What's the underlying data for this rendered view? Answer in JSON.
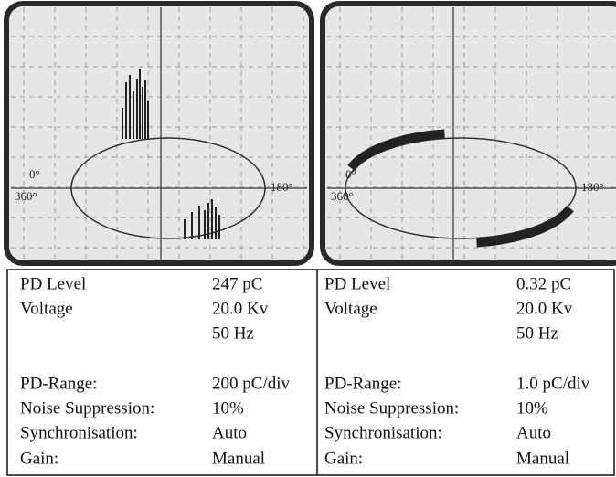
{
  "panels": [
    {
      "scope": {
        "zero": "0°",
        "full": "360°",
        "half": "180°"
      },
      "rows": [
        {
          "label": "PD Level",
          "value": "247 pC"
        },
        {
          "label": "Voltage",
          "value": "20.0 Kv"
        },
        {
          "value": "50 Hz"
        },
        {
          "label": "PD-Range:",
          "value": "200 pC/div"
        },
        {
          "label": "Noise Suppression:",
          "value": "10%"
        },
        {
          "label": "Synchronisation:",
          "value": "Auto"
        },
        {
          "label": "Gain:",
          "value": "Manual"
        }
      ]
    },
    {
      "scope": {
        "zero": "0°",
        "full": "360°",
        "half": "180°"
      },
      "rows": [
        {
          "label": "PD Level",
          "value": "0.32 pC"
        },
        {
          "label": "Voltage",
          "value": "20.0 Kv"
        },
        {
          "value": "50 Hz"
        },
        {
          "label": "PD-Range:",
          "value": "1.0 pC/div"
        },
        {
          "label": "Noise Suppression:",
          "value": "10%"
        },
        {
          "label": "Synchronisation:",
          "value": "Auto"
        },
        {
          "label": "Gain:",
          "value": "Manual"
        }
      ]
    }
  ]
}
